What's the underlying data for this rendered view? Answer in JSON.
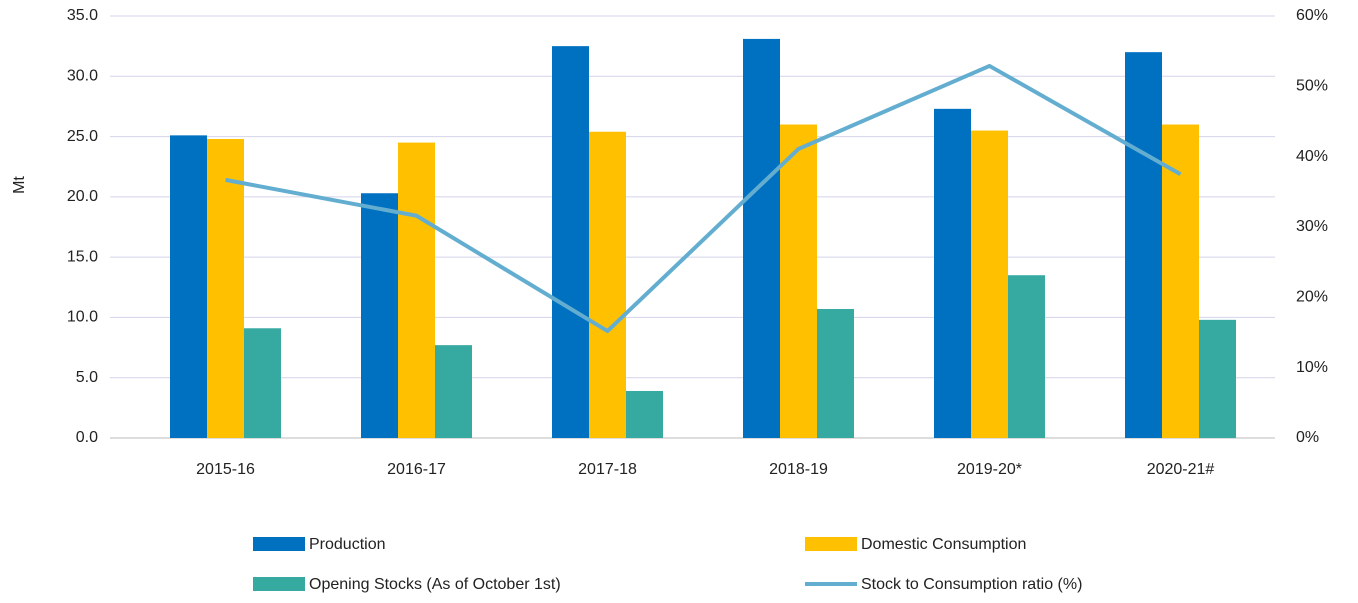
{
  "chart_data": {
    "type": "bar",
    "y_label": "Mt",
    "categories": [
      "2015-16",
      "2016-17",
      "2017-18",
      "2018-19",
      "2019-20*",
      "2020-21#"
    ],
    "series": [
      {
        "name": "Production",
        "color": "#0070c0",
        "values": [
          25.1,
          20.3,
          32.5,
          33.1,
          27.3,
          32.0
        ]
      },
      {
        "name": "Domestic Consumption",
        "color": "#ffc000",
        "values": [
          24.8,
          24.5,
          25.4,
          26.0,
          25.5,
          26.0
        ]
      },
      {
        "name": "Opening Stocks (As of October 1st)",
        "color": "#36a9a0",
        "values": [
          9.1,
          7.7,
          3.9,
          10.7,
          13.5,
          9.8
        ]
      },
      {
        "name": "Stock to Consumption ratio (%)",
        "color": "#63aed0",
        "type": "line",
        "axis": "y2",
        "values": [
          36.7,
          31.6,
          15.2,
          41.1,
          52.9,
          37.5
        ]
      }
    ],
    "ylim": [
      0,
      35
    ],
    "yticks": [
      {
        "value": 0,
        "label": "0.0"
      },
      {
        "value": 5,
        "label": "5.0"
      },
      {
        "value": 10,
        "label": "10.0"
      },
      {
        "value": 15,
        "label": "15.0"
      },
      {
        "value": 20,
        "label": "20.0"
      },
      {
        "value": 25,
        "label": "25.0"
      },
      {
        "value": 30,
        "label": "30.0"
      },
      {
        "value": 35,
        "label": "35.0"
      }
    ],
    "y2lim": [
      0,
      60
    ],
    "y2ticks": [
      {
        "value": 0,
        "label": "0%"
      },
      {
        "value": 10,
        "label": "10%"
      },
      {
        "value": 20,
        "label": "20%"
      },
      {
        "value": 30,
        "label": "30%"
      },
      {
        "value": 40,
        "label": "40%"
      },
      {
        "value": 50,
        "label": "50%"
      },
      {
        "value": 60,
        "label": "60%"
      }
    ],
    "grid": true,
    "legend": "bottom"
  }
}
